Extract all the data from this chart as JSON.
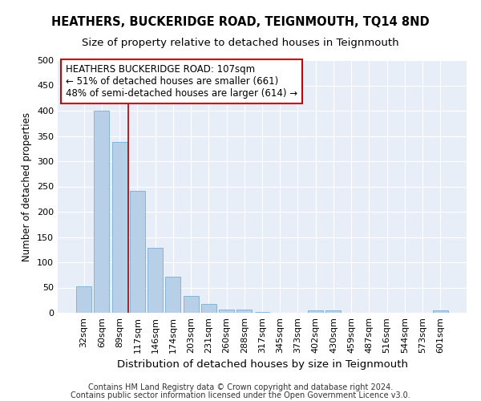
{
  "title": "HEATHERS, BUCKERIDGE ROAD, TEIGNMOUTH, TQ14 8ND",
  "subtitle": "Size of property relative to detached houses in Teignmouth",
  "xlabel": "Distribution of detached houses by size in Teignmouth",
  "ylabel": "Number of detached properties",
  "categories": [
    "32sqm",
    "60sqm",
    "89sqm",
    "117sqm",
    "146sqm",
    "174sqm",
    "203sqm",
    "231sqm",
    "260sqm",
    "288sqm",
    "317sqm",
    "345sqm",
    "373sqm",
    "402sqm",
    "430sqm",
    "459sqm",
    "487sqm",
    "516sqm",
    "544sqm",
    "573sqm",
    "601sqm"
  ],
  "values": [
    53,
    400,
    338,
    242,
    128,
    72,
    34,
    18,
    6,
    6,
    1,
    0,
    0,
    5,
    5,
    0,
    0,
    0,
    0,
    0,
    4
  ],
  "bar_color": "#b8cfe8",
  "bar_edge_color": "#7aaed6",
  "vline_x_index": 2.5,
  "vline_color": "#aa0000",
  "annotation_lines": [
    "HEATHERS BUCKERIDGE ROAD: 107sqm",
    "← 51% of detached houses are smaller (661)",
    "48% of semi-detached houses are larger (614) →"
  ],
  "annotation_box_facecolor": "#ffffff",
  "annotation_box_edgecolor": "#cc0000",
  "ylim": [
    0,
    500
  ],
  "yticks": [
    0,
    50,
    100,
    150,
    200,
    250,
    300,
    350,
    400,
    450,
    500
  ],
  "plot_bg_color": "#e8eef8",
  "footer_line1": "Contains HM Land Registry data © Crown copyright and database right 2024.",
  "footer_line2": "Contains public sector information licensed under the Open Government Licence v3.0.",
  "title_fontsize": 10.5,
  "subtitle_fontsize": 9.5,
  "xlabel_fontsize": 9.5,
  "ylabel_fontsize": 8.5,
  "tick_fontsize": 8,
  "annotation_fontsize": 8.5,
  "footer_fontsize": 7
}
